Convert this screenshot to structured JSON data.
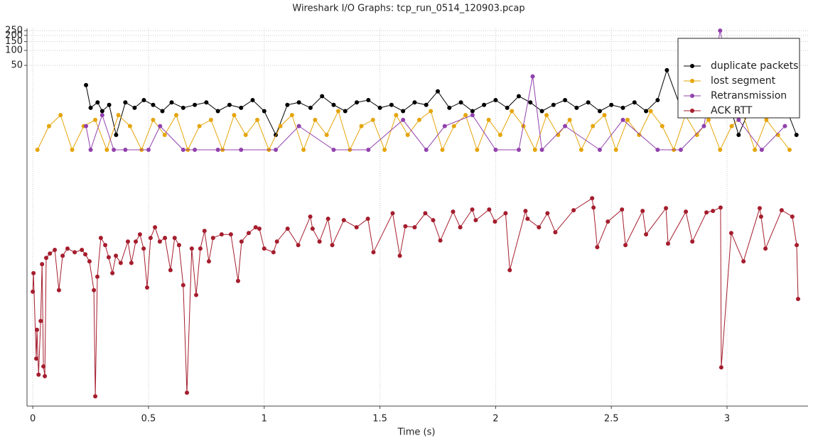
{
  "chart_data": {
    "type": "line",
    "title": "Wireshark I/O Graphs: tcp_run_0514_120903.pcap",
    "x_label": "Time (s)",
    "yscale": "log",
    "grid": true,
    "legend": "upper right",
    "xlim": [
      -0.025,
      3.35
    ],
    "xticks": [
      0,
      0.5,
      1,
      1.5,
      2,
      2.5,
      3
    ],
    "ylim": [
      7e-06,
      277
    ],
    "yticks": [
      50,
      100,
      150,
      200,
      250
    ],
    "series": [
      {
        "name": "duplicate packets",
        "color": "#000000",
        "x": [
          0.23,
          0.25,
          0.28,
          0.3,
          0.33,
          0.36,
          0.4,
          0.44,
          0.48,
          0.52,
          0.56,
          0.6,
          0.65,
          0.7,
          0.75,
          0.8,
          0.85,
          0.9,
          0.95,
          1.0,
          1.05,
          1.1,
          1.15,
          1.2,
          1.25,
          1.3,
          1.35,
          1.4,
          1.45,
          1.5,
          1.55,
          1.6,
          1.65,
          1.7,
          1.75,
          1.8,
          1.85,
          1.9,
          1.95,
          2.0,
          2.05,
          2.1,
          2.15,
          2.2,
          2.25,
          2.3,
          2.35,
          2.4,
          2.45,
          2.5,
          2.55,
          2.6,
          2.65,
          2.7,
          2.74,
          2.8,
          2.85,
          2.9,
          2.95,
          3.0,
          3.05,
          3.1,
          3.15,
          3.2,
          3.25,
          3.3
        ],
        "values": [
          20,
          7,
          9,
          6,
          8,
          2,
          9,
          7,
          10,
          8,
          6,
          9,
          7,
          8,
          9,
          6,
          8,
          7,
          10,
          6,
          2,
          8,
          9,
          7,
          12,
          8,
          6,
          9,
          10,
          7,
          8,
          6,
          9,
          8,
          15,
          7,
          9,
          6,
          8,
          10,
          7,
          12,
          9,
          6,
          8,
          10,
          7,
          9,
          6,
          8,
          7,
          9,
          6,
          10,
          40,
          7,
          8,
          6,
          9,
          12,
          2,
          7,
          9,
          6,
          8,
          2
        ]
      },
      {
        "name": "lost segment",
        "color": "#e5a50a",
        "x": [
          0.02,
          0.07,
          0.12,
          0.17,
          0.22,
          0.27,
          0.32,
          0.37,
          0.42,
          0.47,
          0.52,
          0.57,
          0.62,
          0.67,
          0.72,
          0.77,
          0.82,
          0.87,
          0.92,
          0.97,
          1.02,
          1.07,
          1.12,
          1.17,
          1.22,
          1.27,
          1.32,
          1.37,
          1.42,
          1.47,
          1.52,
          1.57,
          1.62,
          1.67,
          1.72,
          1.77,
          1.82,
          1.87,
          1.92,
          1.97,
          2.02,
          2.07,
          2.12,
          2.17,
          2.22,
          2.27,
          2.32,
          2.37,
          2.42,
          2.47,
          2.52,
          2.57,
          2.62,
          2.67,
          2.72,
          2.77,
          2.82,
          2.87,
          2.92,
          2.97,
          3.02,
          3.07,
          3.12,
          3.17,
          3.22,
          3.27
        ],
        "values": [
          1,
          3,
          5,
          1,
          3,
          4,
          1,
          5,
          3,
          1,
          4,
          2,
          5,
          1,
          3,
          4,
          1,
          5,
          2,
          4,
          1,
          3,
          5,
          1,
          4,
          2,
          6,
          1,
          3,
          4,
          1,
          5,
          2,
          4,
          6,
          1,
          3,
          5,
          1,
          4,
          2,
          6,
          3,
          1,
          5,
          2,
          4,
          1,
          3,
          5,
          1,
          4,
          2,
          6,
          3,
          1,
          5,
          2,
          4,
          1,
          3,
          5,
          1,
          4,
          2,
          1
        ]
      },
      {
        "name": "Retransmission",
        "color": "#9141ac",
        "x": [
          0.23,
          0.25,
          0.3,
          0.35,
          0.4,
          0.5,
          0.55,
          0.65,
          0.7,
          0.8,
          0.9,
          1.05,
          1.15,
          1.3,
          1.45,
          1.6,
          1.7,
          1.78,
          1.9,
          2.0,
          2.1,
          2.16,
          2.2,
          2.3,
          2.45,
          2.55,
          2.7,
          2.8,
          2.9,
          2.97,
          3.05,
          3.15,
          3.25
        ],
        "values": [
          3,
          1,
          5,
          1,
          1,
          1,
          3,
          1,
          1,
          1,
          1,
          1,
          3,
          1,
          1,
          4,
          1,
          3,
          5,
          1,
          1,
          30,
          1,
          3,
          1,
          4,
          1,
          1,
          3,
          250,
          4,
          1,
          3
        ]
      },
      {
        "name": "ACK RTT",
        "color": "#a51d2d",
        "x": [
          0,
          0.003,
          0.015,
          0.018,
          0.025,
          0.034,
          0.04,
          0.046,
          0.052,
          0.058,
          0.074,
          0.095,
          0.113,
          0.129,
          0.15,
          0.181,
          0.212,
          0.227,
          0.245,
          0.264,
          0.27,
          0.279,
          0.294,
          0.313,
          0.328,
          0.344,
          0.359,
          0.38,
          0.411,
          0.426,
          0.445,
          0.463,
          0.479,
          0.494,
          0.509,
          0.528,
          0.549,
          0.571,
          0.595,
          0.613,
          0.632,
          0.65,
          0.666,
          0.687,
          0.706,
          0.724,
          0.742,
          0.761,
          0.779,
          0.816,
          0.856,
          0.887,
          0.902,
          0.933,
          0.963,
          0.979,
          1.0,
          1.04,
          1.055,
          1.101,
          1.147,
          1.199,
          1.209,
          1.239,
          1.276,
          1.294,
          1.344,
          1.399,
          1.448,
          1.472,
          1.555,
          1.586,
          1.61,
          1.65,
          1.696,
          1.73,
          1.761,
          1.816,
          1.847,
          1.899,
          1.914,
          1.972,
          1.997,
          2.043,
          2.061,
          2.129,
          2.138,
          2.187,
          2.224,
          2.258,
          2.337,
          2.417,
          2.423,
          2.439,
          2.485,
          2.546,
          2.561,
          2.635,
          2.65,
          2.736,
          2.745,
          2.822,
          2.85,
          2.911,
          2.939,
          2.972,
          2.975,
          3.018,
          3.071,
          3.141,
          3.147,
          3.166,
          3.236,
          3.282,
          3.301,
          3.307
        ],
        "values": [
          0.0014,
          0.0033,
          6.3e-05,
          0.00024,
          3e-05,
          0.00036,
          0.005,
          4.4e-05,
          2.8e-05,
          0.0067,
          0.0082,
          0.0097,
          0.0015,
          0.0074,
          0.0103,
          0.0087,
          0.0097,
          0.0079,
          0.0057,
          0.0015,
          1.1e-05,
          0.0028,
          0.0169,
          0.0121,
          0.0069,
          0.0033,
          0.0074,
          0.0053,
          0.0143,
          0.0053,
          0.0143,
          0.0199,
          0.0103,
          0.0017,
          0.0169,
          0.0277,
          0.0143,
          0.0169,
          0.0038,
          0.0169,
          0.0121,
          0.0019,
          1.3e-05,
          0.0103,
          0.0012,
          0.0103,
          0.0234,
          0.0057,
          0.0169,
          0.0199,
          0.0199,
          0.0023,
          0.0143,
          0.0212,
          0.0277,
          0.0259,
          0.0103,
          0.0087,
          0.0143,
          0.0259,
          0.0121,
          0.0453,
          0.0259,
          0.0143,
          0.041,
          0.0121,
          0.0384,
          0.0277,
          0.041,
          0.0087,
          0.053,
          0.0074,
          0.029,
          0.0277,
          0.053,
          0.0384,
          0.015,
          0.057,
          0.0277,
          0.063,
          0.0384,
          0.063,
          0.036,
          0.053,
          0.0038,
          0.059,
          0.041,
          0.0277,
          0.053,
          0.022,
          0.061,
          0.106,
          0.069,
          0.011,
          0.036,
          0.063,
          0.0121,
          0.059,
          0.0199,
          0.067,
          0.013,
          0.057,
          0.0143,
          0.055,
          0.059,
          0.069,
          4.2e-05,
          0.0212,
          0.0057,
          0.067,
          0.0453,
          0.0103,
          0.061,
          0.0453,
          0.0121,
          0.001
        ]
      }
    ]
  }
}
